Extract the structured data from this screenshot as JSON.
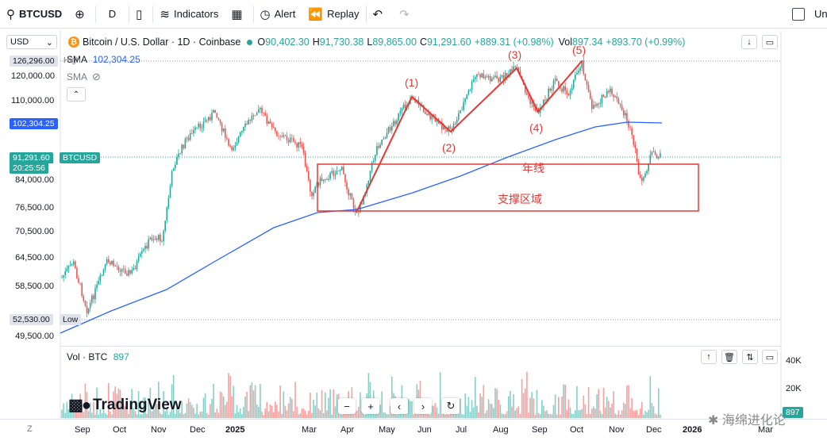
{
  "toolbar": {
    "symbol": "BTCUSD",
    "interval": "D",
    "indicators_label": "Indicators",
    "alert_label": "Alert",
    "replay_label": "Replay",
    "right_label": "Un"
  },
  "legend": {
    "currency": "USD",
    "title": "Bitcoin / U.S. Dollar · 1D · Coinbase",
    "open": "90,402.30",
    "high": "91,730.38",
    "low": "89,865.00",
    "close": "91,291.60",
    "change": "+889.31 (+0.98%)",
    "vol_label": "Vol",
    "vol_value": "897.34",
    "vol_change": "+893.70 (+0.99%)",
    "sma_label": "SMA",
    "sma_value": "102,304.25",
    "sma2_label": "SMA"
  },
  "price_axis": {
    "labels": [
      "120,000.00",
      "110,000.00",
      "84,000.00",
      "76,500.00",
      "70,500.00",
      "64,500.00",
      "58,500.00",
      "49,500.00"
    ],
    "high_tag": "126,296.00",
    "high_word": "High",
    "sma_tag": "102,304.25",
    "price_tag": "91,291.60",
    "countdown": "20:25:56",
    "symbol_tag": "BTCUSD",
    "low_tag": "52,530.00",
    "low_word": "Low"
  },
  "annotations": {
    "wave_1": "(1)",
    "wave_2": "(2)",
    "wave_3": "(3)",
    "wave_4": "(4)",
    "wave_5": "(5)",
    "annual_line": "年线",
    "support_zone": "支撑区域"
  },
  "volume": {
    "label": "Vol · BTC",
    "value": "897",
    "axis": [
      "40K",
      "20K"
    ],
    "tag": "897"
  },
  "time_axis": {
    "zoom": "Z",
    "labels": [
      "Sep",
      "Oct",
      "Nov",
      "Dec",
      "2025",
      "Mar",
      "Apr",
      "May",
      "Jun",
      "Jul",
      "Aug",
      "Sep",
      "Oct",
      "Nov",
      "Dec",
      "2026",
      "Mar"
    ]
  },
  "branding": {
    "logo_text": "TradingView",
    "watermark": "海绵进化论"
  },
  "colors": {
    "up": "#26a69a",
    "down": "#ef5350",
    "sma": "#2962ff",
    "annotation": "#e53935"
  },
  "icons": [
    "search-icon",
    "plus-circle-icon",
    "candles-icon",
    "indicators-icon",
    "templates-icon",
    "alert-icon",
    "replay-icon",
    "undo-icon",
    "redo-icon"
  ]
}
